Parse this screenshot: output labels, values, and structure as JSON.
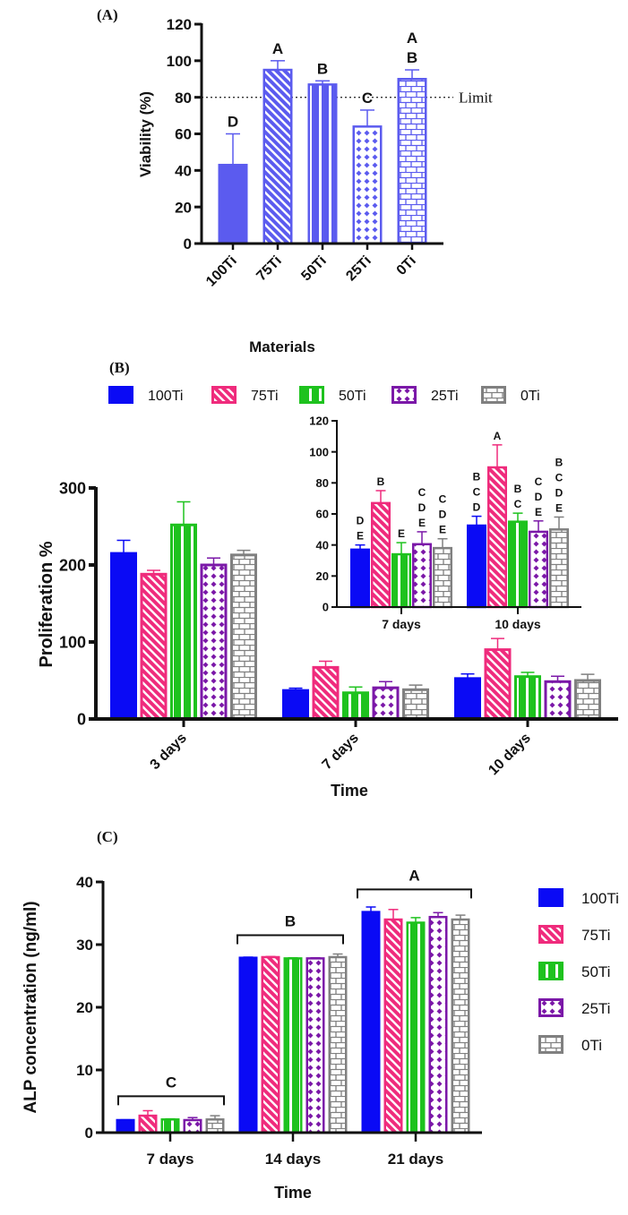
{
  "series_styles": [
    {
      "name": "100Ti",
      "color": "#0a0af5",
      "pattern": "solid"
    },
    {
      "name": "75Ti",
      "color": "#ef2b7c",
      "pattern": "diagonal-stripes"
    },
    {
      "name": "50Ti",
      "color": "#1ec21e",
      "pattern": "vertical-stripes"
    },
    {
      "name": "25Ti",
      "color": "#7b18a8",
      "pattern": "diamonds"
    },
    {
      "name": "0Ti",
      "color": "#808080",
      "pattern": "bricks"
    }
  ],
  "chart_data": [
    {
      "panel": "(A)",
      "type": "bar",
      "xlabel": "Materials",
      "ylabel": "Viability (%)",
      "ylim": [
        0,
        120
      ],
      "yticks": [
        "0",
        "20",
        "40",
        "60",
        "80",
        "100",
        "120"
      ],
      "color": "#5b5bef",
      "categories": [
        "100Ti",
        "75Ti",
        "50Ti",
        "25Ti",
        "0Ti"
      ],
      "values": [
        43,
        95,
        87,
        64,
        90
      ],
      "errors": [
        17,
        5,
        2,
        9,
        5
      ],
      "letters": [
        [
          "D"
        ],
        [
          "A"
        ],
        [
          "B"
        ],
        [
          "C"
        ],
        [
          "A",
          "B"
        ]
      ],
      "reference_line": {
        "value": 80,
        "label": "Limit",
        "style": "dotted"
      }
    },
    {
      "panel": "(B)",
      "type": "bar",
      "xlabel": "Time",
      "ylabel": "Proliferation %",
      "ylim": [
        0,
        300
      ],
      "yticks": [
        "0",
        "100",
        "200",
        "300"
      ],
      "legend": "top",
      "categories": [
        "3 days",
        "7 days",
        "10 days"
      ],
      "series": [
        {
          "name": "100Ti",
          "values": [
            215,
            37,
            52.5
          ],
          "errors": [
            17,
            3,
            6
          ]
        },
        {
          "name": "75Ti",
          "values": [
            188,
            67,
            90
          ],
          "errors": [
            5,
            8,
            14.5
          ]
        },
        {
          "name": "50Ti",
          "values": [
            252,
            34,
            55
          ],
          "errors": [
            30,
            7.5,
            5.5
          ]
        },
        {
          "name": "25Ti",
          "values": [
            200,
            40.5,
            48.5
          ],
          "errors": [
            9,
            8,
            7
          ]
        },
        {
          "name": "0Ti",
          "values": [
            213,
            38,
            50
          ],
          "errors": [
            6,
            6,
            8
          ]
        }
      ],
      "inset": {
        "ylim": [
          0,
          120
        ],
        "yticks": [
          "0",
          "20",
          "40",
          "60",
          "80",
          "100",
          "120"
        ],
        "categories": [
          "7 days",
          "10 days"
        ],
        "letters": [
          [
            [
              "D",
              "E"
            ],
            [
              "B"
            ],
            [
              "E"
            ],
            [
              "C",
              "D",
              "E"
            ],
            [
              "C",
              "D",
              "E"
            ]
          ],
          [
            [
              "B",
              "C",
              "D"
            ],
            [
              "A"
            ],
            [
              "B",
              "C"
            ],
            [
              "C",
              "D",
              "E"
            ],
            [
              "B",
              "C",
              "D",
              "E"
            ]
          ]
        ]
      }
    },
    {
      "panel": "(C)",
      "type": "bar",
      "xlabel": "Time",
      "ylabel": "ALP concentration (ng/ml)",
      "ylim": [
        0,
        40
      ],
      "yticks": [
        "0",
        "10",
        "20",
        "30",
        "40"
      ],
      "legend": "right",
      "categories": [
        "7 days",
        "14 days",
        "21 days"
      ],
      "series": [
        {
          "name": "100Ti",
          "values": [
            2.0,
            27.9,
            35.2
          ],
          "errors": [
            0.05,
            0.1,
            0.8
          ]
        },
        {
          "name": "75Ti",
          "values": [
            2.7,
            28.0,
            34.0
          ],
          "errors": [
            0.8,
            0.1,
            1.6
          ]
        },
        {
          "name": "50Ti",
          "values": [
            2.1,
            27.8,
            33.5
          ],
          "errors": [
            0.1,
            0.1,
            0.8
          ]
        },
        {
          "name": "25Ti",
          "values": [
            2.0,
            27.8,
            34.4
          ],
          "errors": [
            0.4,
            0.1,
            0.7
          ]
        },
        {
          "name": "0Ti",
          "values": [
            2.1,
            28.0,
            34.0
          ],
          "errors": [
            0.6,
            0.5,
            0.7
          ]
        }
      ],
      "group_letters": [
        "C",
        "B",
        "A"
      ]
    }
  ]
}
